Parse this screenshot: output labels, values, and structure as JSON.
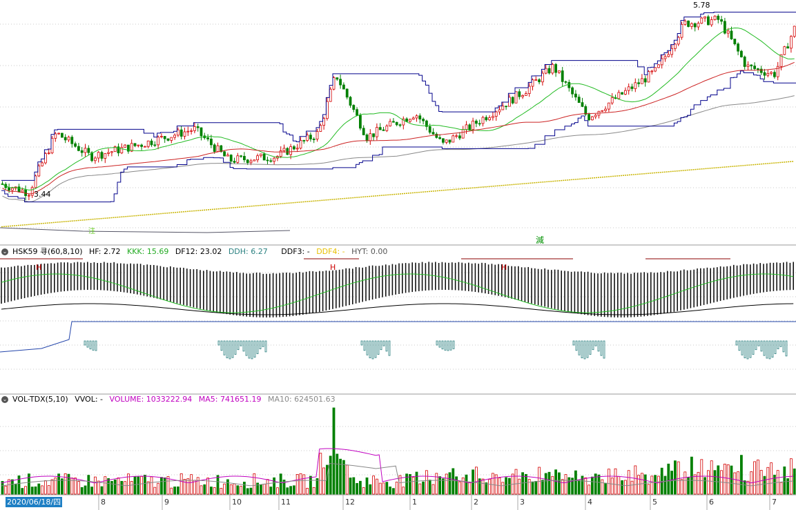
{
  "chart_data": [
    {
      "type": "candlestick",
      "panel": "price",
      "annotations": {
        "high_label": "5.78",
        "low_label": "3.44",
        "marker_green": "減",
        "marker_yellow": "注"
      },
      "price_range": [
        2.9,
        5.9
      ],
      "colors": {
        "up": "#d40000",
        "down": "#008000",
        "ma_green": "#22bb22",
        "ma_red": "#cc2222",
        "ma_gray": "#888888",
        "ma_yellow": "#c8b400",
        "channel": "#00008b"
      }
    },
    {
      "type": "line",
      "panel": "indicator",
      "name": "HSK59 寻(60,8,10)",
      "values": {
        "HF": "2.72",
        "KKK": "15.69",
        "DF12": "23.02",
        "DDH": "6.27",
        "DDF3": "-",
        "DDF4": "-",
        "HYT": "0.00"
      },
      "marker": "H"
    },
    {
      "type": "bar",
      "panel": "volume",
      "name": "VOL-TDX(5,10)",
      "values": {
        "VVOL": "-",
        "VOLUME": "1033222.94",
        "MA5": "741651.19",
        "MA10": "624501.63"
      }
    }
  ],
  "labels": {
    "hsk_title": "HSK59 寻(60,8,10)",
    "hf": "HF: 2.72",
    "kkk": "KKK: 15.69",
    "df12": "DF12: 23.02",
    "ddh": "DDH: 6.27",
    "ddf3": "DDF3: -",
    "ddf4": "DDF4: -",
    "hyt": "HYT: 0.00",
    "vol_title": "VOL-TDX(5,10)",
    "vvol": "VVOL: -",
    "volume": "VOLUME: 1033222.94",
    "ma5": "MA5: 741651.19",
    "ma10": "MA10: 624501.63",
    "date_badge": "2020/06/18/四"
  },
  "x_axis": {
    "months": [
      "8",
      "9",
      "10",
      "11",
      "12",
      "1",
      "2",
      "3",
      "4",
      "5",
      "6",
      "7"
    ]
  }
}
